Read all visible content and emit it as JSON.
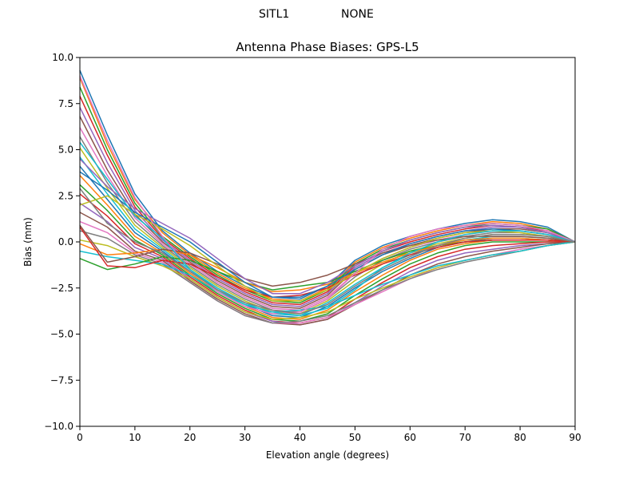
{
  "suptitle": {
    "station": "SITL1",
    "antenna": "NONE"
  },
  "chart_data": {
    "type": "line",
    "title": "Antenna Phase Biases: GPS-L5",
    "xlabel": "Elevation angle (degrees)",
    "ylabel": "Bias (mm)",
    "xlim": [
      0,
      90
    ],
    "ylim": [
      -10,
      10
    ],
    "xticks": [
      "0",
      "10",
      "20",
      "30",
      "40",
      "50",
      "60",
      "70",
      "80",
      "90"
    ],
    "yticks": [
      "10.0",
      "7.5",
      "5.0",
      "2.5",
      "0.0",
      "−2.5",
      "−5.0",
      "−7.5",
      "−10.0"
    ],
    "grid": false,
    "x": [
      0,
      5,
      10,
      15,
      20,
      25,
      30,
      35,
      40,
      45,
      50,
      55,
      60,
      65,
      70,
      75,
      80,
      85,
      90
    ],
    "series": [
      {
        "color": "#1f77b4",
        "values": [
          9.3,
          5.8,
          2.6,
          0.6,
          -0.6,
          -1.6,
          -2.4,
          -3.0,
          -3.1,
          -2.4,
          -1.0,
          -0.2,
          0.3,
          0.7,
          1.0,
          1.2,
          1.1,
          0.8,
          0.0
        ]
      },
      {
        "color": "#ff7f0e",
        "values": [
          8.9,
          5.3,
          2.3,
          0.5,
          -0.7,
          -1.7,
          -2.5,
          -3.1,
          -3.2,
          -2.5,
          -1.1,
          -0.3,
          0.2,
          0.6,
          0.9,
          1.1,
          1.0,
          0.7,
          0.0
        ]
      },
      {
        "color": "#2ca02c",
        "values": [
          8.4,
          5.0,
          2.1,
          0.3,
          -0.8,
          -1.8,
          -2.6,
          -3.2,
          -3.3,
          -2.6,
          -1.2,
          -0.4,
          0.1,
          0.5,
          0.8,
          1.0,
          0.9,
          0.7,
          0.0
        ]
      },
      {
        "color": "#d62728",
        "values": [
          7.9,
          4.7,
          1.9,
          0.2,
          -0.9,
          -1.9,
          -2.7,
          -3.3,
          -3.4,
          -2.7,
          -1.3,
          -0.5,
          0.0,
          0.4,
          0.7,
          0.9,
          0.8,
          0.6,
          0.0
        ]
      },
      {
        "color": "#9467bd",
        "values": [
          7.3,
          4.3,
          1.7,
          0.1,
          -1.0,
          -2.0,
          -2.8,
          -3.4,
          -3.5,
          -2.8,
          -1.4,
          -0.6,
          -0.1,
          0.3,
          0.6,
          0.8,
          0.8,
          0.5,
          0.0
        ]
      },
      {
        "color": "#8c564b",
        "values": [
          6.8,
          3.9,
          1.5,
          0.0,
          -1.1,
          -2.1,
          -2.9,
          -3.5,
          -3.6,
          -2.9,
          -1.5,
          -0.7,
          -0.2,
          0.2,
          0.5,
          0.7,
          0.7,
          0.5,
          0.0
        ]
      },
      {
        "color": "#e377c2",
        "values": [
          6.2,
          3.6,
          1.3,
          -0.1,
          -1.2,
          -2.2,
          -3.0,
          -3.6,
          -3.7,
          -3.0,
          -1.7,
          -0.9,
          -0.3,
          0.1,
          0.4,
          0.6,
          0.6,
          0.4,
          0.0
        ]
      },
      {
        "color": "#7f7f7f",
        "values": [
          5.7,
          3.2,
          1.1,
          -0.2,
          -1.3,
          -2.3,
          -3.1,
          -3.7,
          -3.8,
          -3.1,
          -1.9,
          -1.0,
          -0.4,
          0.0,
          0.3,
          0.5,
          0.5,
          0.3,
          0.0
        ]
      },
      {
        "color": "#bcbd22",
        "values": [
          5.1,
          2.9,
          0.9,
          -0.3,
          -1.4,
          -2.4,
          -3.2,
          -3.8,
          -3.9,
          -3.2,
          -2.1,
          -1.2,
          -0.5,
          -0.1,
          0.2,
          0.4,
          0.4,
          0.3,
          0.0
        ]
      },
      {
        "color": "#17becf",
        "values": [
          4.6,
          2.6,
          0.7,
          -0.4,
          -1.5,
          -2.5,
          -3.3,
          -3.9,
          -4.0,
          -3.3,
          -2.3,
          -1.4,
          -0.7,
          -0.2,
          0.1,
          0.3,
          0.3,
          0.2,
          0.0
        ]
      },
      {
        "color": "#1f77b4",
        "values": [
          4.1,
          2.3,
          0.5,
          -0.5,
          -1.6,
          -2.6,
          -3.4,
          -4.0,
          -4.1,
          -3.5,
          -2.5,
          -1.6,
          -0.9,
          -0.3,
          0.0,
          0.2,
          0.2,
          0.1,
          0.0
        ]
      },
      {
        "color": "#ff7f0e",
        "values": [
          3.6,
          2.0,
          0.3,
          -0.6,
          -1.7,
          -2.7,
          -3.5,
          -4.1,
          -4.2,
          -3.7,
          -2.7,
          -1.8,
          -1.0,
          -0.4,
          -0.1,
          0.1,
          0.1,
          0.1,
          0.0
        ]
      },
      {
        "color": "#2ca02c",
        "values": [
          3.1,
          1.7,
          0.1,
          -0.7,
          -1.8,
          -2.8,
          -3.6,
          -4.2,
          -4.3,
          -3.9,
          -2.9,
          -2.0,
          -1.2,
          -0.6,
          -0.2,
          0.0,
          0.0,
          0.0,
          0.0
        ]
      },
      {
        "color": "#d62728",
        "values": [
          2.6,
          1.4,
          -0.1,
          -0.8,
          -1.9,
          -2.9,
          -3.7,
          -4.3,
          -4.4,
          -4.1,
          -3.1,
          -2.2,
          -1.4,
          -0.8,
          -0.4,
          -0.2,
          -0.1,
          0.0,
          0.0
        ]
      },
      {
        "color": "#9467bd",
        "values": [
          2.1,
          1.1,
          -0.3,
          -0.9,
          -2.0,
          -3.0,
          -3.8,
          -4.3,
          -4.5,
          -4.2,
          -3.3,
          -2.4,
          -1.6,
          -1.0,
          -0.6,
          -0.4,
          -0.2,
          -0.1,
          0.0
        ]
      },
      {
        "color": "#8c564b",
        "values": [
          1.6,
          0.8,
          -0.5,
          -1.0,
          -2.1,
          -3.1,
          -3.9,
          -4.4,
          -4.5,
          -4.2,
          -3.4,
          -2.6,
          -1.8,
          -1.2,
          -0.8,
          -0.5,
          -0.3,
          -0.1,
          0.0
        ]
      },
      {
        "color": "#e377c2",
        "values": [
          1.1,
          0.5,
          -0.6,
          -1.1,
          -2.2,
          -3.2,
          -4.0,
          -4.4,
          -4.4,
          -4.1,
          -3.4,
          -2.7,
          -2.0,
          -1.4,
          -1.0,
          -0.7,
          -0.4,
          -0.2,
          0.0
        ]
      },
      {
        "color": "#7f7f7f",
        "values": [
          0.6,
          0.2,
          -0.7,
          -1.2,
          -2.2,
          -3.2,
          -4.0,
          -4.4,
          -4.3,
          -4.0,
          -3.3,
          -2.6,
          -2.0,
          -1.5,
          -1.1,
          -0.8,
          -0.5,
          -0.2,
          0.0
        ]
      },
      {
        "color": "#bcbd22",
        "values": [
          0.1,
          -0.2,
          -0.8,
          -1.3,
          -2.0,
          -3.0,
          -3.8,
          -4.2,
          -4.1,
          -3.8,
          -3.1,
          -2.5,
          -1.9,
          -1.4,
          -1.0,
          -0.7,
          -0.5,
          -0.2,
          0.0
        ]
      },
      {
        "color": "#17becf",
        "values": [
          -0.5,
          -0.8,
          -1.0,
          -1.2,
          -1.8,
          -2.7,
          -3.4,
          -3.8,
          -3.7,
          -3.5,
          -2.9,
          -2.3,
          -1.8,
          -1.3,
          -1.0,
          -0.7,
          -0.5,
          -0.2,
          0.0
        ]
      },
      {
        "color": "#2ca02c",
        "values": [
          -0.9,
          -1.5,
          -1.2,
          -0.8,
          -1.0,
          -1.6,
          -2.2,
          -2.6,
          -2.4,
          -2.2,
          -1.6,
          -1.0,
          -0.5,
          -0.2,
          0.0,
          0.1,
          0.1,
          0.1,
          0.0
        ]
      },
      {
        "color": "#ff7f0e",
        "values": [
          -0.1,
          -0.7,
          -0.6,
          -0.4,
          -0.7,
          -1.4,
          -2.2,
          -2.7,
          -2.6,
          -2.3,
          -1.7,
          -1.1,
          -0.6,
          -0.2,
          0.1,
          0.2,
          0.2,
          0.1,
          0.0
        ]
      },
      {
        "color": "#d62728",
        "values": [
          0.8,
          -1.3,
          -1.4,
          -1.0,
          -1.2,
          -1.9,
          -2.6,
          -3.0,
          -2.9,
          -2.5,
          -1.8,
          -1.2,
          -0.7,
          -0.3,
          0.0,
          0.1,
          0.1,
          0.1,
          0.0
        ]
      },
      {
        "color": "#8c564b",
        "values": [
          0.9,
          -1.1,
          -0.8,
          -0.4,
          -0.6,
          -1.2,
          -2.0,
          -2.4,
          -2.2,
          -1.8,
          -1.2,
          -0.6,
          -0.2,
          0.1,
          0.3,
          0.3,
          0.3,
          0.2,
          0.0
        ]
      },
      {
        "color": "#9467bd",
        "values": [
          4.5,
          3.0,
          1.8,
          1.0,
          0.2,
          -0.9,
          -2.0,
          -2.8,
          -2.8,
          -2.2,
          -1.3,
          -0.5,
          0.1,
          0.5,
          0.8,
          0.9,
          0.8,
          0.5,
          0.0
        ]
      },
      {
        "color": "#1f77b4",
        "values": [
          3.8,
          2.8,
          1.6,
          0.8,
          0.0,
          -1.1,
          -2.2,
          -3.0,
          -3.0,
          -2.4,
          -1.5,
          -0.7,
          -0.1,
          0.3,
          0.6,
          0.7,
          0.6,
          0.4,
          0.0
        ]
      },
      {
        "color": "#bcbd22",
        "values": [
          2.0,
          2.5,
          1.5,
          0.7,
          -0.2,
          -1.3,
          -2.4,
          -3.2,
          -3.2,
          -2.6,
          -1.7,
          -0.9,
          -0.3,
          0.2,
          0.5,
          0.6,
          0.5,
          0.3,
          0.0
        ]
      },
      {
        "color": "#e377c2",
        "values": [
          9.0,
          5.5,
          2.4,
          0.3,
          -1.5,
          -2.7,
          -3.5,
          -3.9,
          -3.8,
          -3.1,
          -1.7,
          -0.4,
          0.3,
          0.7,
          0.9,
          1.0,
          0.9,
          0.6,
          0.0
        ]
      },
      {
        "color": "#17becf",
        "values": [
          5.4,
          3.4,
          1.4,
          0.2,
          -1.5,
          -2.6,
          -3.4,
          -3.8,
          -4.0,
          -3.6,
          -2.6,
          -1.4,
          -0.6,
          0.0,
          0.4,
          0.6,
          0.6,
          0.4,
          0.0
        ]
      },
      {
        "color": "#7f7f7f",
        "values": [
          2.9,
          1.0,
          0.0,
          -0.6,
          -1.6,
          -2.6,
          -3.3,
          -3.7,
          -3.9,
          -3.4,
          -2.4,
          -1.5,
          -0.8,
          -0.2,
          0.2,
          0.4,
          0.4,
          0.3,
          0.0
        ]
      }
    ]
  }
}
